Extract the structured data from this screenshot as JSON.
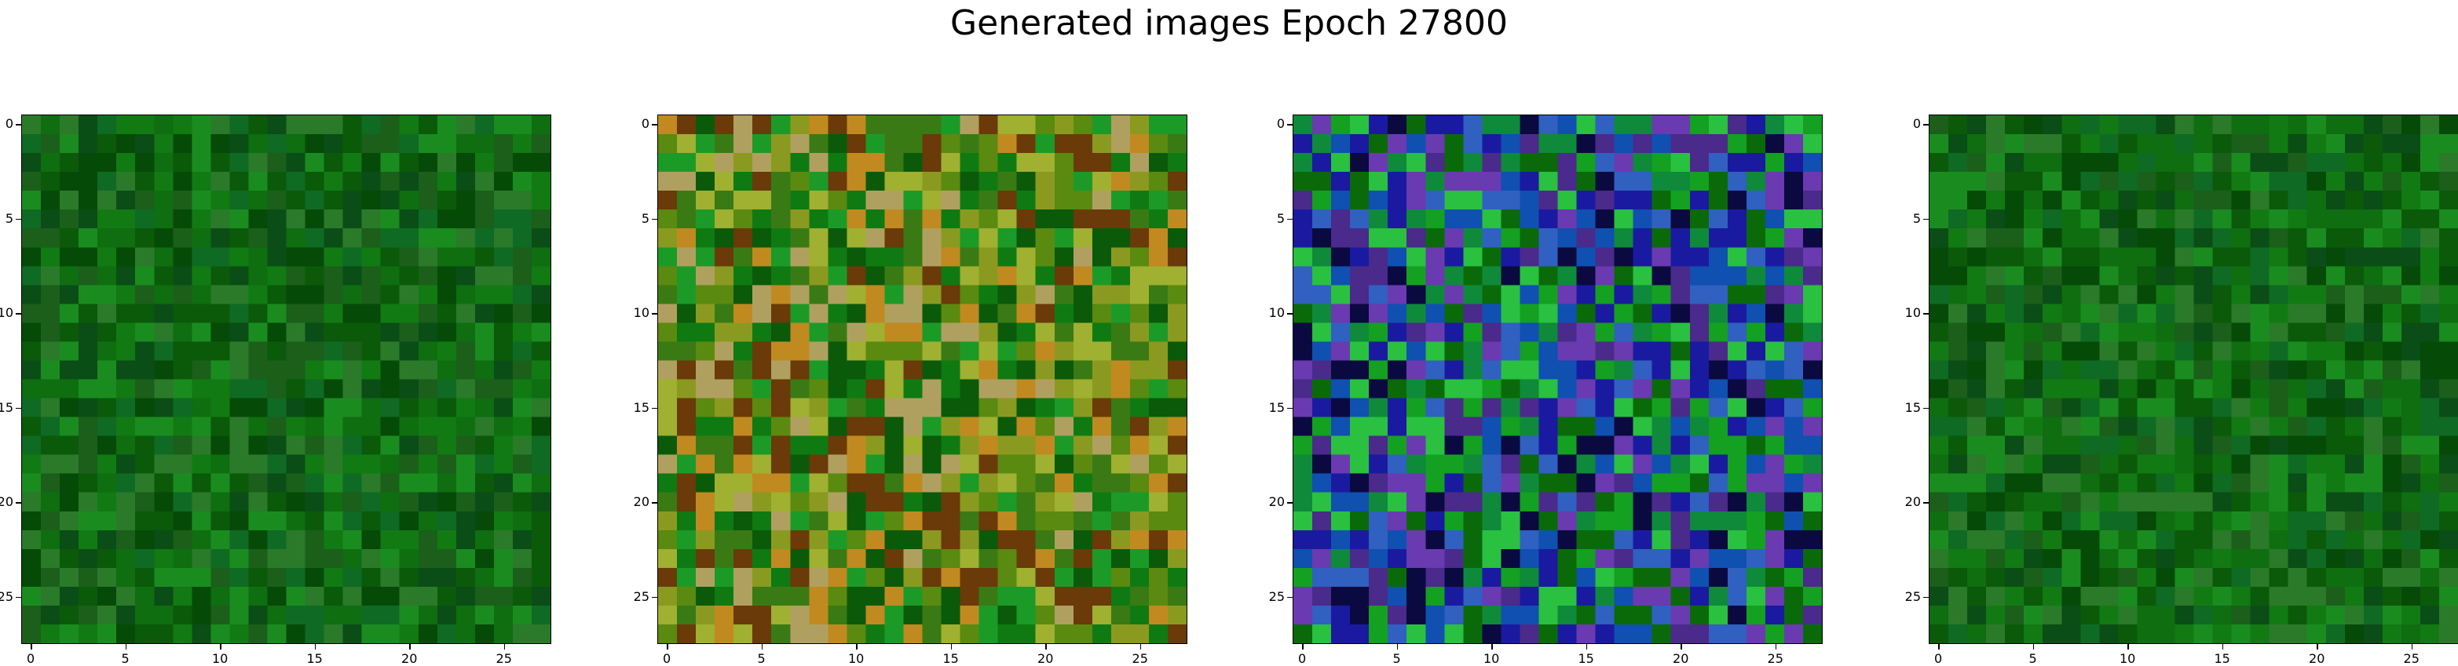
{
  "figure": {
    "suptitle": "Generated images Epoch 27800",
    "tick_labels": [
      "0",
      "5",
      "10",
      "15",
      "20",
      "25"
    ],
    "tick_values": [
      0,
      5,
      10,
      15,
      20,
      25
    ],
    "grid_size": 28
  },
  "panels": [
    {
      "name": "image-1",
      "palette": [
        "#0a5a0a",
        "#0e6e10",
        "#127a12",
        "#0b4d16",
        "#1a8c1f",
        "#064a08",
        "#2a7a2a",
        "#0f6a24",
        "#1b5f1a"
      ]
    },
    {
      "name": "image-2",
      "palette": [
        "#5a8a10",
        "#8a9a20",
        "#0f7a12",
        "#a0b030",
        "#6a3a08",
        "#b0a060",
        "#1c9a28",
        "#c08a20",
        "#3a7a14",
        "#0a5a0a"
      ]
    },
    {
      "name": "image-3",
      "palette": [
        "#0a6a0a",
        "#14a020",
        "#1a1aa0",
        "#3060c0",
        "#4a2a8a",
        "#0a0a40",
        "#2ac040",
        "#6a3ab0",
        "#0e8a3a",
        "#1050b0"
      ]
    },
    {
      "name": "image-4",
      "palette": [
        "#0a5a0a",
        "#0e6e10",
        "#127a12",
        "#0b4d16",
        "#1a8c1f",
        "#064a08",
        "#2a7a2a",
        "#0f6a24",
        "#1b5f1a"
      ]
    }
  ]
}
